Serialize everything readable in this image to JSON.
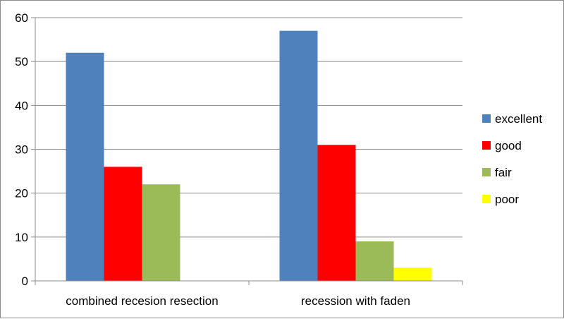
{
  "chart_data": {
    "type": "bar",
    "categories": [
      "combined recesion resection",
      "recession with faden"
    ],
    "series": [
      {
        "name": "excellent",
        "color": "#4f81bd",
        "values": [
          52,
          57
        ]
      },
      {
        "name": "good",
        "color": "#ff0000",
        "values": [
          26,
          31
        ]
      },
      {
        "name": "fair",
        "color": "#9bbb59",
        "values": [
          22,
          9
        ]
      },
      {
        "name": "poor",
        "color": "#ffff00",
        "values": [
          0,
          3
        ]
      }
    ],
    "ylim": [
      0,
      60
    ],
    "yticks": [
      0,
      10,
      20,
      30,
      40,
      50,
      60
    ],
    "grid": true,
    "legend_position": "right"
  }
}
